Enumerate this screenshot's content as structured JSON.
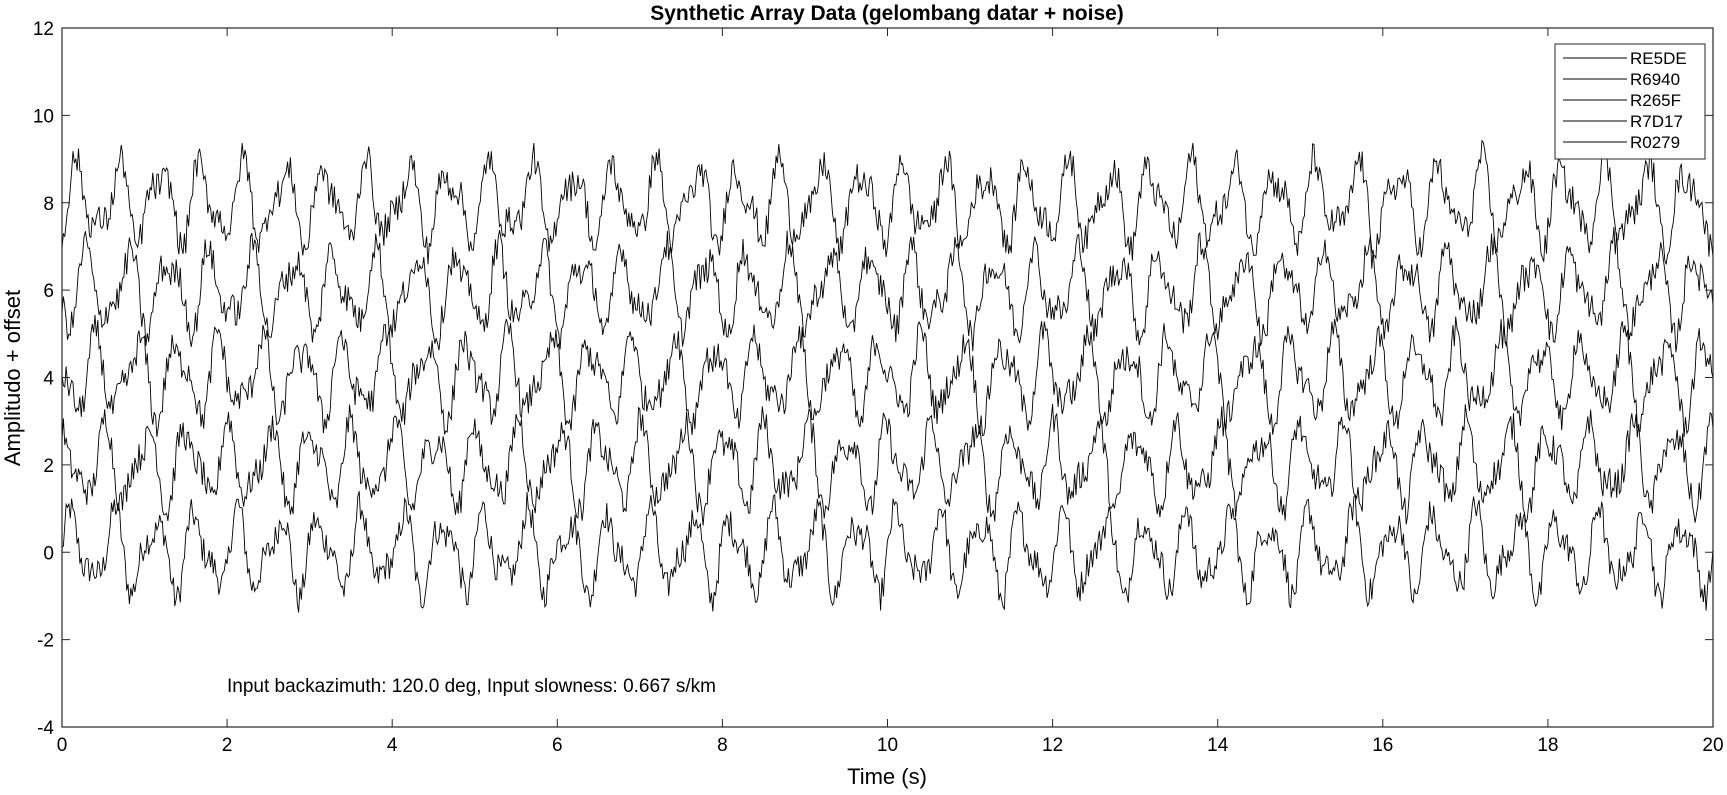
{
  "chart_data": {
    "type": "line",
    "title": "Synthetic Array Data (gelombang datar + noise)",
    "xlabel": "Time (s)",
    "ylabel": "Amplitudo + offset",
    "xlim": [
      0,
      20
    ],
    "ylim": [
      -4,
      12
    ],
    "xticks": [
      0,
      2,
      4,
      6,
      8,
      10,
      12,
      14,
      16,
      18,
      20
    ],
    "yticks": [
      -4,
      -2,
      0,
      2,
      4,
      6,
      8,
      10,
      12
    ],
    "grid": false,
    "legend_position": "top-right",
    "annotation": "Input backazimuth: 120.0 deg, Input slowness: 0.667 s/km",
    "line_color": "#000000",
    "series": [
      {
        "name": "RE5DE",
        "offset": 0,
        "dominant_frequency_hz": 2.0,
        "amplitude": 1.0,
        "noise": 0.35
      },
      {
        "name": "R6940",
        "offset": 2,
        "dominant_frequency_hz": 2.0,
        "amplitude": 1.0,
        "noise": 0.35
      },
      {
        "name": "R265F",
        "offset": 4,
        "dominant_frequency_hz": 2.0,
        "amplitude": 1.0,
        "noise": 0.35
      },
      {
        "name": "R7D17",
        "offset": 6,
        "dominant_frequency_hz": 2.0,
        "amplitude": 1.0,
        "noise": 0.35
      },
      {
        "name": "R0279",
        "offset": 8,
        "dominant_frequency_hz": 2.0,
        "amplitude": 1.0,
        "noise": 0.35
      }
    ]
  }
}
